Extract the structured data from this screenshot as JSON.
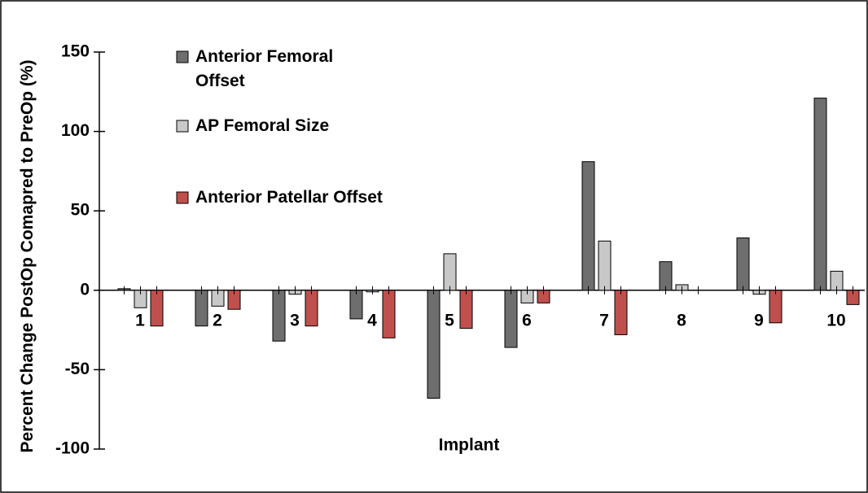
{
  "chart_data": {
    "type": "bar",
    "x_label": "Implant",
    "y_label": "Percent Change PostOp Comapred to PreOp (%)",
    "categories": [
      "1",
      "2",
      "3",
      "4",
      "5",
      "6",
      "7",
      "8",
      "9",
      "10"
    ],
    "series": [
      {
        "name": "Anterior Femoral Offset",
        "color": "#6e6e6e",
        "values": [
          1,
          -22.5,
          -32,
          -18,
          -68,
          -36,
          81,
          18,
          33,
          121
        ]
      },
      {
        "name": "AP Femoral Size",
        "color": "#c8c8c8",
        "values": [
          -11,
          -10,
          -2.5,
          -1,
          23,
          -8,
          31,
          3.5,
          -2.5,
          12
        ]
      },
      {
        "name": "Anterior Patellar Offset",
        "color": "#c0504d",
        "values": [
          -22.5,
          -12,
          -22.5,
          -30,
          -24,
          -8,
          -28,
          0,
          -20.5,
          -9
        ]
      }
    ],
    "ylim": [
      -100,
      150
    ],
    "yticks": [
      -100,
      -50,
      0,
      50,
      100,
      150
    ]
  }
}
